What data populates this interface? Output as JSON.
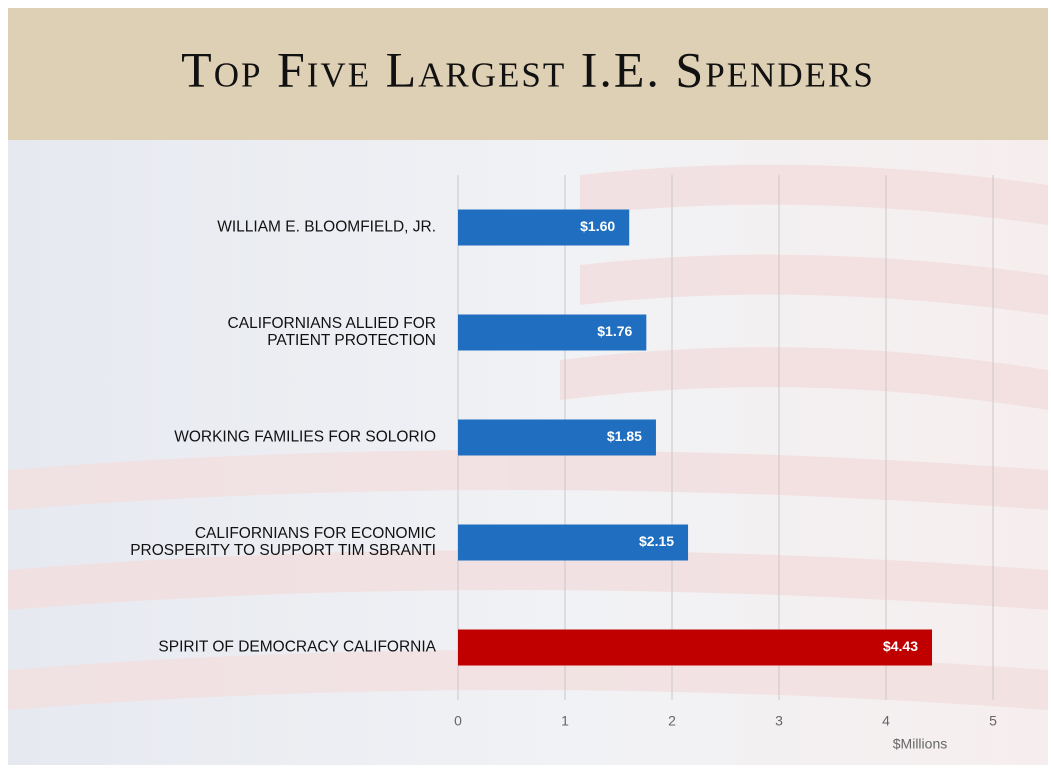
{
  "chart_data": {
    "type": "bar",
    "orientation": "horizontal",
    "title": "Top Five Largest I.E. Spenders",
    "categories": [
      "WILLIAM E. BLOOMFIELD, JR.",
      "CALIFORNIANS ALLIED FOR\nPATIENT PROTECTION",
      "WORKING FAMILIES FOR SOLORIO",
      "CALIFORNIANS FOR ECONOMIC\nPROSPERITY TO SUPPORT TIM SBRANTI",
      "SPIRIT OF DEMOCRACY CALIFORNIA"
    ],
    "values": [
      1.6,
      1.76,
      1.85,
      2.15,
      4.43
    ],
    "value_labels": [
      "$1.60",
      "$1.76",
      "$1.85",
      "$2.15",
      "$4.43"
    ],
    "colors": [
      "#1f6ebf",
      "#1f6ebf",
      "#1f6ebf",
      "#1f6ebf",
      "#c00000"
    ],
    "xlabel": "$Millions",
    "xlim": [
      0,
      5
    ],
    "xticks": [
      0,
      1,
      2,
      3,
      4,
      5
    ],
    "grid": true
  }
}
